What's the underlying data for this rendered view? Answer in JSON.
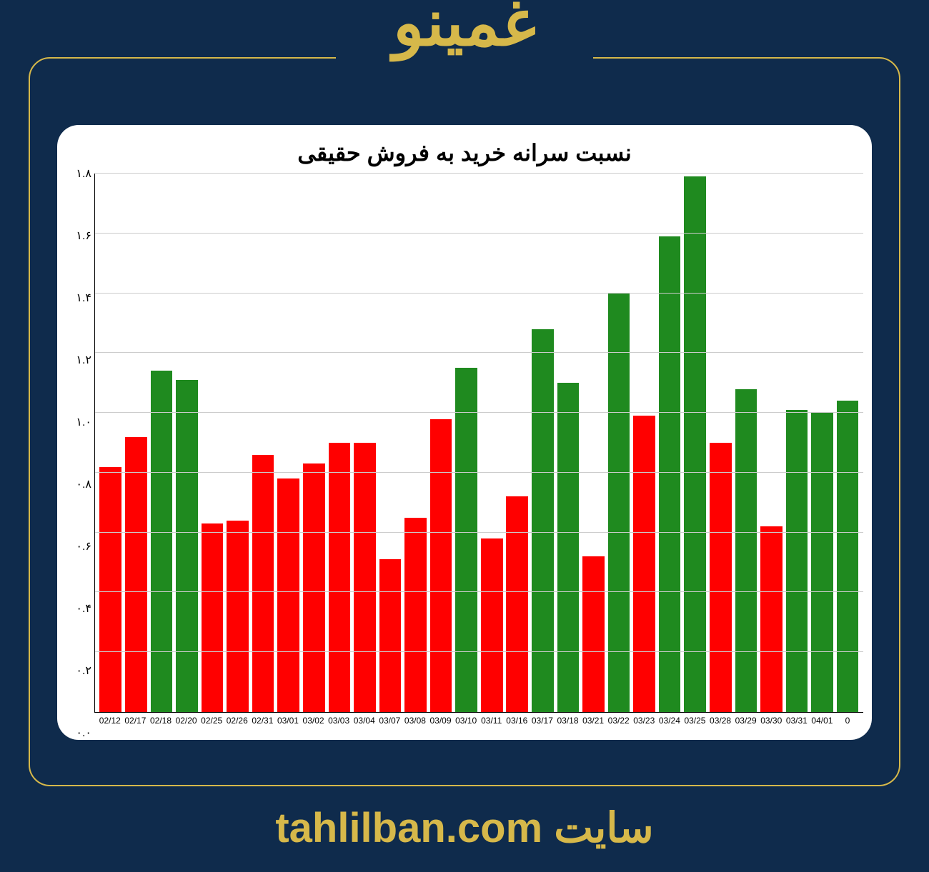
{
  "header": {
    "title": "غمینو"
  },
  "footer": {
    "label": "سایت",
    "url": "tahlilban.com"
  },
  "chart": {
    "type": "bar",
    "title": "نسبت سرانه خرید به فروش حقیقی",
    "title_fontsize": 32,
    "background_color": "#ffffff",
    "page_background": "#0f2b4c",
    "accent_color": "#d6b84a",
    "grid_color": "#cccccc",
    "axis_color": "#000000",
    "ylim": [
      0.0,
      1.8
    ],
    "ytick_step": 0.2,
    "yticks": [
      {
        "v": 0.0,
        "label": "۰.۰"
      },
      {
        "v": 0.2,
        "label": "۰.۲"
      },
      {
        "v": 0.4,
        "label": "۰.۴"
      },
      {
        "v": 0.6,
        "label": "۰.۶"
      },
      {
        "v": 0.8,
        "label": "۰.۸"
      },
      {
        "v": 1.0,
        "label": "۱.۰"
      },
      {
        "v": 1.2,
        "label": "۱.۲"
      },
      {
        "v": 1.4,
        "label": "۱.۴"
      },
      {
        "v": 1.6,
        "label": "۱.۶"
      },
      {
        "v": 1.8,
        "label": "۱.۸"
      }
    ],
    "colors": {
      "up": "#1f8a1f",
      "down": "#ff0000"
    },
    "bar_width": 0.86,
    "categories": [
      "02/12",
      "02/17",
      "02/18",
      "02/20",
      "02/25",
      "02/26",
      "02/31",
      "03/01",
      "03/02",
      "03/03",
      "03/04",
      "03/07",
      "03/08",
      "03/09",
      "03/10",
      "03/11",
      "03/16",
      "03/17",
      "03/18",
      "03/21",
      "03/22",
      "03/23",
      "03/24",
      "03/25",
      "03/28",
      "03/29",
      "03/30",
      "03/31",
      "04/01",
      "0"
    ],
    "values": [
      0.82,
      0.92,
      1.14,
      1.11,
      0.63,
      0.64,
      0.86,
      0.78,
      0.83,
      0.9,
      0.9,
      0.51,
      0.65,
      0.98,
      1.15,
      0.58,
      0.72,
      1.28,
      1.1,
      0.52,
      1.4,
      0.99,
      1.59,
      1.79,
      0.9,
      1.08,
      0.62,
      1.01,
      1.0,
      1.04
    ]
  }
}
